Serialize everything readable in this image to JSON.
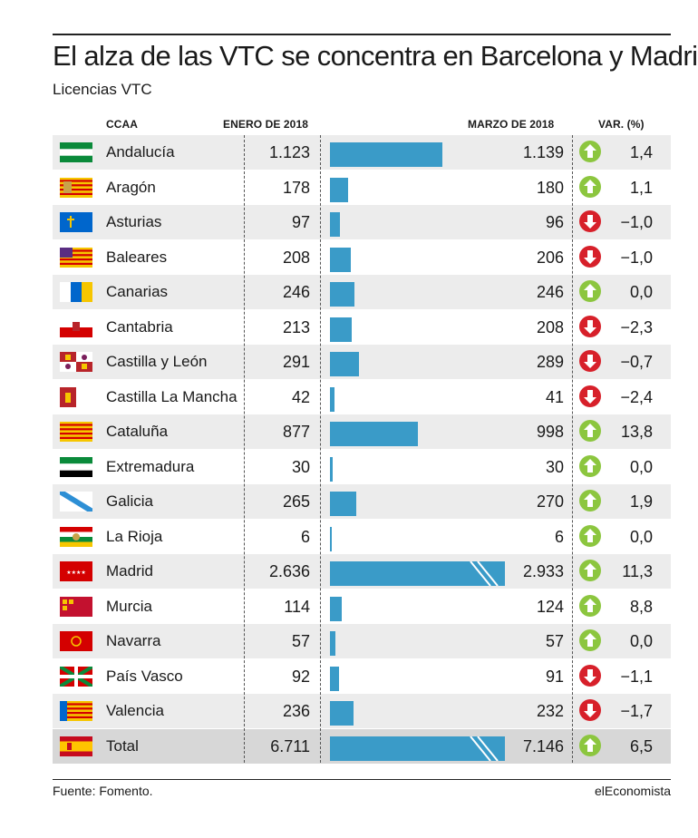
{
  "title": "El alza de las VTC se concentra en Barcelona y Madrid",
  "subtitle": "Licencias VTC",
  "source": "Fuente: Fomento.",
  "brand": "elEconomista",
  "colors": {
    "bar": "#3a9bc8",
    "up": "#8cc63f",
    "down": "#d7202a",
    "row_shade": "#ececec",
    "total_shade": "#d7d7d7"
  },
  "chart_data": {
    "type": "table",
    "columns": [
      "CCAA",
      "ENERO DE 2018",
      "MARZO DE 2018",
      "VAR. (%)"
    ],
    "rows": [
      {
        "region": "Andalucía",
        "flag": "flag-andalucia",
        "jan": "1.123",
        "mar": "1.139",
        "var": "1,4",
        "dir": "up",
        "jan_value": 1123
      },
      {
        "region": "Aragón",
        "flag": "flag-aragon",
        "jan": "178",
        "mar": "180",
        "var": "1,1",
        "dir": "up",
        "jan_value": 178
      },
      {
        "region": "Asturias",
        "flag": "flag-asturias",
        "jan": "97",
        "mar": "96",
        "var": "−1,0",
        "dir": "down",
        "jan_value": 97
      },
      {
        "region": "Baleares",
        "flag": "flag-baleares",
        "jan": "208",
        "mar": "206",
        "var": "−1,0",
        "dir": "down",
        "jan_value": 208
      },
      {
        "region": "Canarias",
        "flag": "flag-canarias",
        "jan": "246",
        "mar": "246",
        "var": "0,0",
        "dir": "up",
        "jan_value": 246
      },
      {
        "region": "Cantabria",
        "flag": "flag-cantabria",
        "jan": "213",
        "mar": "208",
        "var": "−2,3",
        "dir": "down",
        "jan_value": 213
      },
      {
        "region": "Castilla y León",
        "flag": "flag-castilla-leon",
        "jan": "291",
        "mar": "289",
        "var": "−0,7",
        "dir": "down",
        "jan_value": 291
      },
      {
        "region": "Castilla La Mancha",
        "flag": "flag-castilla-la-mancha",
        "jan": "42",
        "mar": "41",
        "var": "−2,4",
        "dir": "down",
        "jan_value": 42
      },
      {
        "region": "Cataluña",
        "flag": "flag-cataluna",
        "jan": "877",
        "mar": "998",
        "var": "13,8",
        "dir": "up",
        "jan_value": 877
      },
      {
        "region": "Extremadura",
        "flag": "flag-extremadura",
        "jan": "30",
        "mar": "30",
        "var": "0,0",
        "dir": "up",
        "jan_value": 30
      },
      {
        "region": "Galicia",
        "flag": "flag-galicia",
        "jan": "265",
        "mar": "270",
        "var": "1,9",
        "dir": "up",
        "jan_value": 265
      },
      {
        "region": "La Rioja",
        "flag": "flag-la-rioja",
        "jan": "6",
        "mar": "6",
        "var": "0,0",
        "dir": "up",
        "jan_value": 6
      },
      {
        "region": "Madrid",
        "flag": "flag-madrid",
        "jan": "2.636",
        "mar": "2.933",
        "var": "11,3",
        "dir": "up",
        "jan_value": 2636,
        "broken": true
      },
      {
        "region": "Murcia",
        "flag": "flag-murcia",
        "jan": "114",
        "mar": "124",
        "var": "8,8",
        "dir": "up",
        "jan_value": 114
      },
      {
        "region": "Navarra",
        "flag": "flag-navarra",
        "jan": "57",
        "mar": "57",
        "var": "0,0",
        "dir": "up",
        "jan_value": 57
      },
      {
        "region": "País Vasco",
        "flag": "flag-pais-vasco",
        "jan": "92",
        "mar": "91",
        "var": "−1,1",
        "dir": "down",
        "jan_value": 92
      },
      {
        "region": "Valencia",
        "flag": "flag-valencia",
        "jan": "236",
        "mar": "232",
        "var": "−1,7",
        "dir": "down",
        "jan_value": 236
      },
      {
        "region": "Total",
        "flag": "flag-espana",
        "jan": "6.711",
        "mar": "7.146",
        "var": "6,5",
        "dir": "up",
        "jan_value": 6711,
        "broken": true,
        "total": true
      }
    ]
  }
}
